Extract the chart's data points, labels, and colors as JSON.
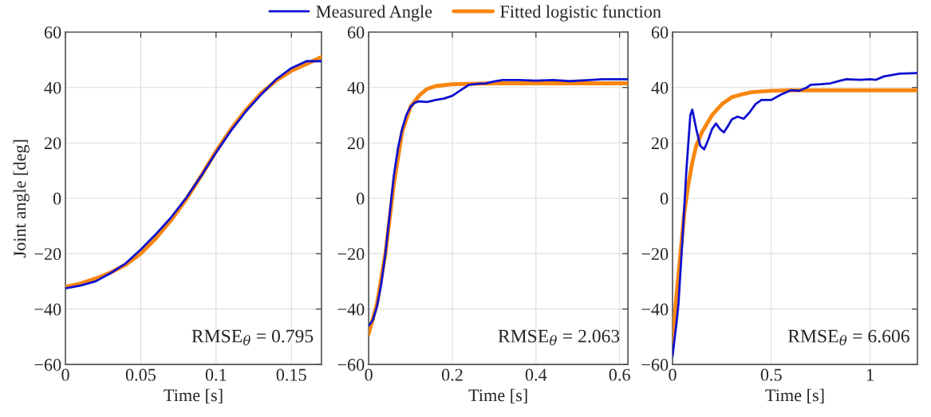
{
  "chart_data": [
    {
      "type": "line",
      "xlabel": "Time [s]",
      "ylabel": "Joint angle [deg]",
      "xlim": [
        0,
        0.17
      ],
      "xticks": [
        0,
        0.05,
        0.1,
        0.15
      ],
      "ylim": [
        -60,
        60
      ],
      "yticks": [
        -60,
        -40,
        -20,
        0,
        20,
        40,
        60
      ],
      "grid": true,
      "legend": "top",
      "annotations": [
        "RMSE$_{θ}$ = 0.795"
      ],
      "series": [
        {
          "name": "Measured Angle",
          "color": "#1010d0",
          "x": [
            0,
            0.01,
            0.02,
            0.03,
            0.04,
            0.05,
            0.06,
            0.07,
            0.08,
            0.09,
            0.1,
            0.11,
            0.12,
            0.13,
            0.14,
            0.15,
            0.16,
            0.17
          ],
          "values": [
            -32.5,
            -31.5,
            -30,
            -27,
            -23.5,
            -18.5,
            -13,
            -7,
            0,
            8,
            16.5,
            24.5,
            31.5,
            37.5,
            43,
            47,
            49.5,
            49.5
          ]
        },
        {
          "name": "Fitted logistic function",
          "color": "#f7860f",
          "x": [
            0,
            0.01,
            0.02,
            0.03,
            0.04,
            0.05,
            0.06,
            0.07,
            0.08,
            0.09,
            0.1,
            0.11,
            0.12,
            0.13,
            0.14,
            0.15,
            0.16,
            0.17
          ],
          "values": [
            -32,
            -30.8,
            -29,
            -26.8,
            -24,
            -20,
            -14.5,
            -8,
            -0.5,
            8,
            17,
            25,
            32,
            38,
            42.5,
            46,
            48.5,
            51
          ]
        }
      ]
    },
    {
      "type": "line",
      "xlabel": "Time [s]",
      "xlim": [
        0,
        0.62
      ],
      "xticks": [
        0,
        0.2,
        0.4,
        0.6
      ],
      "ylim": [
        -60,
        60
      ],
      "yticks": [
        -60,
        -40,
        -20,
        0,
        20,
        40,
        60
      ],
      "grid": true,
      "annotations": [
        "RMSE$_{θ}$ = 2.063"
      ],
      "series": [
        {
          "color": "#1010d0",
          "x": [
            0,
            0.01,
            0.02,
            0.03,
            0.04,
            0.05,
            0.06,
            0.07,
            0.08,
            0.09,
            0.1,
            0.11,
            0.12,
            0.14,
            0.16,
            0.18,
            0.2,
            0.22,
            0.24,
            0.26,
            0.28,
            0.3,
            0.32,
            0.36,
            0.4,
            0.44,
            0.48,
            0.52,
            0.56,
            0.62
          ],
          "values": [
            -46,
            -44,
            -39,
            -31,
            -20,
            -6,
            8,
            18,
            25,
            30,
            33,
            34.5,
            35,
            34.8,
            35.5,
            36,
            37,
            39,
            41,
            41.3,
            41.5,
            42.2,
            42.7,
            42.7,
            42.5,
            42.7,
            42.3,
            42.6,
            43,
            43
          ]
        },
        {
          "color": "#f7860f",
          "x": [
            0,
            0.02,
            0.04,
            0.06,
            0.08,
            0.1,
            0.12,
            0.14,
            0.16,
            0.2,
            0.3,
            0.62
          ],
          "values": [
            -49,
            -38,
            -20,
            5,
            24,
            33,
            37,
            39.5,
            40.5,
            41.2,
            41.5,
            41.5
          ]
        }
      ]
    },
    {
      "type": "line",
      "xlabel": "Time [s]",
      "xlim": [
        0,
        1.24
      ],
      "xticks": [
        0,
        0.5,
        1
      ],
      "ylim": [
        -60,
        60
      ],
      "yticks": [
        -60,
        -40,
        -20,
        0,
        20,
        40,
        60
      ],
      "grid": true,
      "annotations": [
        "RMSE$_{θ}$ = 6.606"
      ],
      "series": [
        {
          "color": "#1010d0",
          "x": [
            0,
            0.02,
            0.03,
            0.05,
            0.07,
            0.09,
            0.1,
            0.12,
            0.14,
            0.16,
            0.18,
            0.2,
            0.22,
            0.24,
            0.26,
            0.28,
            0.3,
            0.33,
            0.36,
            0.39,
            0.42,
            0.45,
            0.5,
            0.55,
            0.6,
            0.64,
            0.68,
            0.7,
            0.75,
            0.8,
            0.85,
            0.88,
            0.95,
            1.0,
            1.03,
            1.07,
            1.15,
            1.24
          ],
          "values": [
            -57,
            -45,
            -38,
            -15,
            10,
            30,
            32,
            25,
            19,
            17.7,
            21,
            25,
            27,
            25,
            23.8,
            26,
            28.5,
            29.5,
            28.7,
            31,
            34,
            35.5,
            35.5,
            37.5,
            39,
            38.8,
            40,
            41,
            41.2,
            41.5,
            42.5,
            43,
            42.8,
            43,
            42.8,
            44,
            45,
            45.2
          ]
        },
        {
          "color": "#f7860f",
          "x": [
            0,
            0.02,
            0.04,
            0.06,
            0.08,
            0.1,
            0.12,
            0.15,
            0.2,
            0.25,
            0.3,
            0.35,
            0.4,
            0.5,
            0.6,
            1.24
          ],
          "values": [
            -52,
            -35,
            -20,
            -5,
            5,
            13,
            19,
            24,
            30,
            34,
            36.5,
            37.5,
            38.3,
            38.8,
            39,
            39
          ]
        }
      ]
    }
  ]
}
